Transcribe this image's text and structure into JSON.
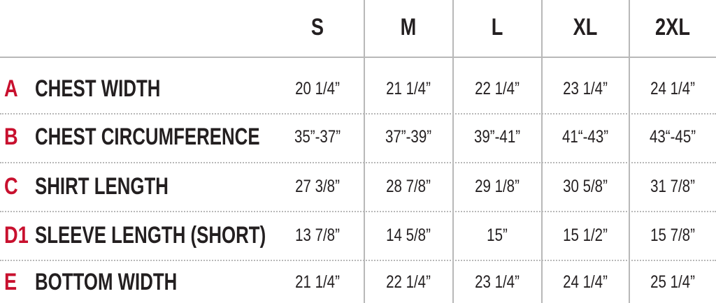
{
  "header": {
    "columns": [
      "S",
      "M",
      "L",
      "XL",
      "2XL"
    ]
  },
  "rows": [
    {
      "letter": "A",
      "label": "CHEST WIDTH",
      "values": [
        "20 1/4”",
        "21 1/4”",
        "22 1/4”",
        "23 1/4”",
        "24 1/4”"
      ]
    },
    {
      "letter": "B",
      "label": "CHEST CIRCUMFERENCE",
      "values": [
        "35”-37”",
        "37”-39”",
        "39”-41”",
        "41“-43”",
        "43“-45”"
      ]
    },
    {
      "letter": "C",
      "label": "SHIRT LENGTH",
      "values": [
        "27 3/8”",
        "28 7/8”",
        "29 1/8”",
        "30 5/8”",
        "31 7/8”"
      ]
    },
    {
      "letter": "D1",
      "label": "SLEEVE LENGTH (SHORT)",
      "values": [
        "13 7/8”",
        "14 5/8”",
        "15”",
        "15 1/2”",
        "15 7/8”"
      ]
    },
    {
      "letter": "E",
      "label": "BOTTOM WIDTH",
      "values": [
        "21 1/4”",
        "22 1/4”",
        "23 1/4”",
        "24 1/4”",
        "25 1/4”"
      ]
    }
  ]
}
